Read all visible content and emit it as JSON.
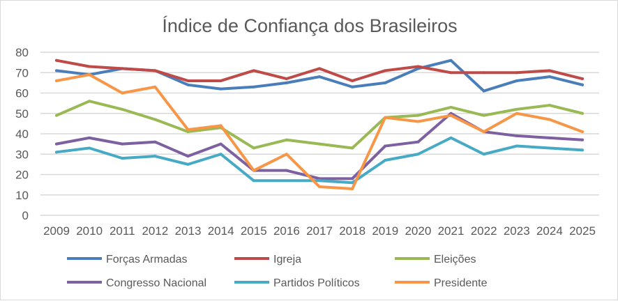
{
  "chart_data": {
    "type": "line",
    "title": "Índice de Confiança dos Brasileiros",
    "xlabel": "",
    "ylabel": "",
    "ylim": [
      0,
      80
    ],
    "yticks": [
      "0",
      "10",
      "20",
      "30",
      "40",
      "50",
      "60",
      "70",
      "80"
    ],
    "grid": true,
    "legend_position": "bottom",
    "categories": [
      "2009",
      "2010",
      "2011",
      "2012",
      "2013",
      "2014",
      "2015",
      "2016",
      "2017",
      "2018",
      "2019",
      "2020",
      "2021",
      "2022",
      "2023",
      "2024",
      "2025"
    ],
    "series": [
      {
        "name": "Forças Armadas",
        "color": "#4a7ebb",
        "values": [
          71,
          69,
          72,
          71,
          64,
          62,
          63,
          65,
          68,
          63,
          65,
          72,
          76,
          61,
          66,
          68,
          64
        ]
      },
      {
        "name": "Igreja",
        "color": "#be4b48",
        "values": [
          76,
          73,
          72,
          71,
          66,
          66,
          71,
          67,
          72,
          66,
          71,
          73,
          70,
          70,
          70,
          71,
          67
        ]
      },
      {
        "name": "Eleições",
        "color": "#98b954",
        "values": [
          49,
          56,
          52,
          47,
          41,
          43,
          33,
          37,
          35,
          33,
          48,
          49,
          53,
          49,
          52,
          54,
          50
        ]
      },
      {
        "name": "Congresso Nacional",
        "color": "#7d60a0",
        "values": [
          35,
          38,
          35,
          36,
          29,
          35,
          22,
          22,
          18,
          18,
          34,
          36,
          50,
          41,
          39,
          38,
          37
        ]
      },
      {
        "name": "Partidos Políticos",
        "color": "#46aac5",
        "values": [
          31,
          33,
          28,
          29,
          25,
          30,
          17,
          17,
          17,
          16,
          27,
          30,
          38,
          30,
          34,
          33,
          32
        ]
      },
      {
        "name": "Presidente",
        "color": "#f79646",
        "values": [
          66,
          69,
          60,
          63,
          42,
          44,
          22,
          30,
          14,
          13,
          48,
          46,
          49,
          41,
          50,
          47,
          41
        ]
      }
    ]
  }
}
